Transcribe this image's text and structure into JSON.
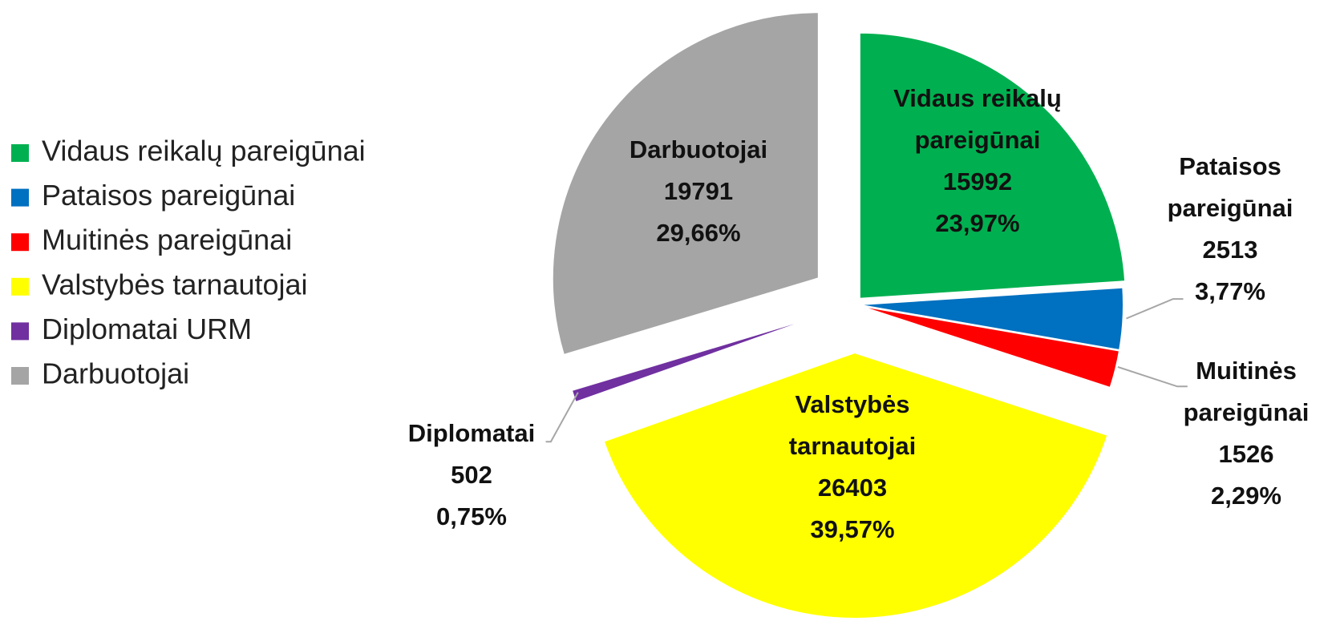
{
  "chart_data": {
    "type": "pie",
    "categories": [
      "Vidaus reikalų pareigūnai",
      "Pataisos pareigūnai",
      "Muitinės pareigūnai",
      "Valstybės tarnautojai",
      "Diplomatai URM",
      "Darbuotojai"
    ],
    "label_names": [
      "Vidaus reikalų pareigūnai",
      "Pataisos pareigūnai",
      "Muitinės pareigūnai",
      "Valstybės tarnautojai",
      "Diplomatai",
      "Darbuotojai"
    ],
    "values": [
      15992,
      2513,
      1526,
      26403,
      502,
      19791
    ],
    "percents": [
      23.97,
      3.77,
      2.29,
      39.57,
      0.75,
      29.66
    ],
    "percent_labels": [
      "23,97%",
      "3,77%",
      "2,29%",
      "39,57%",
      "0,75%",
      "29,66%"
    ],
    "colors": [
      "#00b050",
      "#0070c0",
      "#ff0000",
      "#ffff00",
      "#7030a0",
      "#a5a5a5"
    ],
    "legend": "left"
  }
}
